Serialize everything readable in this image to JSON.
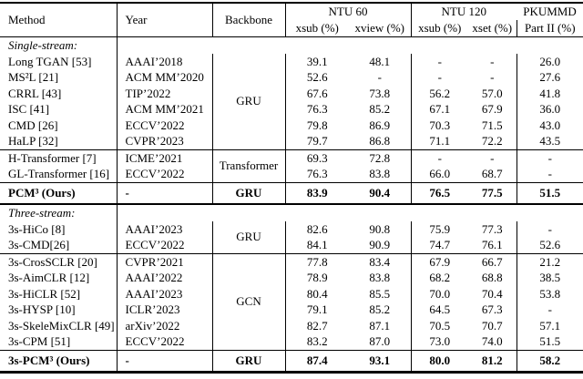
{
  "colors": {
    "background": "#ffffff",
    "text": "#000000",
    "rule": "#000000"
  },
  "table": {
    "header": {
      "method": "Method",
      "year": "Year",
      "backbone": "Backbone",
      "groups": [
        {
          "label": "NTU 60",
          "sub": [
            "xsub (%)",
            "xview (%)"
          ]
        },
        {
          "label": "NTU 120",
          "sub": [
            "xsub (%)",
            "xset (%)"
          ]
        },
        {
          "label": "PKUMMD",
          "sub": [
            "Part II (%)"
          ]
        }
      ]
    },
    "rows": [
      {
        "type": "label",
        "method": "Single-stream:"
      },
      {
        "type": "data",
        "method": "Long TGAN [53]",
        "year": "AAAI’2018",
        "backbone": {
          "label": "GRU",
          "span": 6
        },
        "values": [
          "39.1",
          "48.1",
          "-",
          "-",
          "26.0"
        ]
      },
      {
        "type": "data",
        "method": "MS²L [21]",
        "year": "ACM MM’2020",
        "values": [
          "52.6",
          "-",
          "-",
          "-",
          "27.6"
        ]
      },
      {
        "type": "data",
        "method": "CRRL [43]",
        "year": "TIP’2022",
        "values": [
          "67.6",
          "73.8",
          "56.2",
          "57.0",
          "41.8"
        ]
      },
      {
        "type": "data",
        "method": "ISC [41]",
        "year": "ACM MM’2021",
        "values": [
          "76.3",
          "85.2",
          "67.1",
          "67.9",
          "36.0"
        ]
      },
      {
        "type": "data",
        "method": "CMD [26]",
        "year": "ECCV’2022",
        "values": [
          "79.8",
          "86.9",
          "70.3",
          "71.5",
          "43.0"
        ]
      },
      {
        "type": "data",
        "method": "HaLP [32]",
        "year": "CVPR’2023",
        "values": [
          "79.7",
          "86.8",
          "71.1",
          "72.2",
          "43.5"
        ],
        "ruleAfter": "thin"
      },
      {
        "type": "data",
        "method": "H-Transformer [7]",
        "year": "ICME’2021",
        "backbone": {
          "label": "Transformer",
          "span": 2
        },
        "values": [
          "69.3",
          "72.8",
          "-",
          "-",
          "-"
        ]
      },
      {
        "type": "data",
        "method": "GL-Transformer [16]",
        "year": "ECCV’2022",
        "values": [
          "76.3",
          "83.8",
          "66.0",
          "68.7",
          "-"
        ],
        "ruleAfter": "thin"
      },
      {
        "type": "data",
        "method": "PCM³ (Ours)",
        "year": "-",
        "backbone": {
          "label": "GRU",
          "span": 1
        },
        "values": [
          "83.9",
          "90.4",
          "76.5",
          "77.5",
          "51.5"
        ],
        "bold": true,
        "tall": true,
        "ruleAfter": "thick"
      },
      {
        "type": "label",
        "method": "Three-stream:"
      },
      {
        "type": "data",
        "method": "3s-HiCo [8]",
        "year": "AAAI’2023",
        "backbone": {
          "label": "GRU",
          "span": 2
        },
        "values": [
          "82.6",
          "90.8",
          "75.9",
          "77.3",
          "-"
        ]
      },
      {
        "type": "data",
        "method": "3s-CMD[26]",
        "year": "ECCV’2022",
        "values": [
          "84.1",
          "90.9",
          "74.7",
          "76.1",
          "52.6"
        ],
        "ruleAfter": "thin"
      },
      {
        "type": "data",
        "method": "3s-CrosSCLR [20]",
        "year": "CVPR’2021",
        "backbone": {
          "label": "GCN",
          "span": 6
        },
        "values": [
          "77.8",
          "83.4",
          "67.9",
          "66.7",
          "21.2"
        ]
      },
      {
        "type": "data",
        "method": "3s-AimCLR [12]",
        "year": "AAAI’2022",
        "values": [
          "78.9",
          "83.8",
          "68.2",
          "68.8",
          "38.5"
        ]
      },
      {
        "type": "data",
        "method": "3s-HiCLR [52]",
        "year": "AAAI’2023",
        "values": [
          "80.4",
          "85.5",
          "70.0",
          "70.4",
          "53.8"
        ]
      },
      {
        "type": "data",
        "method": "3s-HYSP [10]",
        "year": "ICLR’2023",
        "values": [
          "79.1",
          "85.2",
          "64.5",
          "67.3",
          "-"
        ]
      },
      {
        "type": "data",
        "method": "3s-SkeleMixCLR [49]",
        "year": "arXiv’2022",
        "values": [
          "82.7",
          "87.1",
          "70.5",
          "70.7",
          "57.1"
        ]
      },
      {
        "type": "data",
        "method": "3s-CPM [51]",
        "year": "ECCV’2022",
        "values": [
          "83.2",
          "87.0",
          "73.0",
          "74.0",
          "51.5"
        ],
        "ruleAfter": "thin"
      },
      {
        "type": "data",
        "method": "3s-PCM³ (Ours)",
        "year": "-",
        "backbone": {
          "label": "GRU",
          "span": 1
        },
        "values": [
          "87.4",
          "93.1",
          "80.0",
          "81.2",
          "58.2"
        ],
        "bold": true,
        "tall": true
      }
    ]
  }
}
